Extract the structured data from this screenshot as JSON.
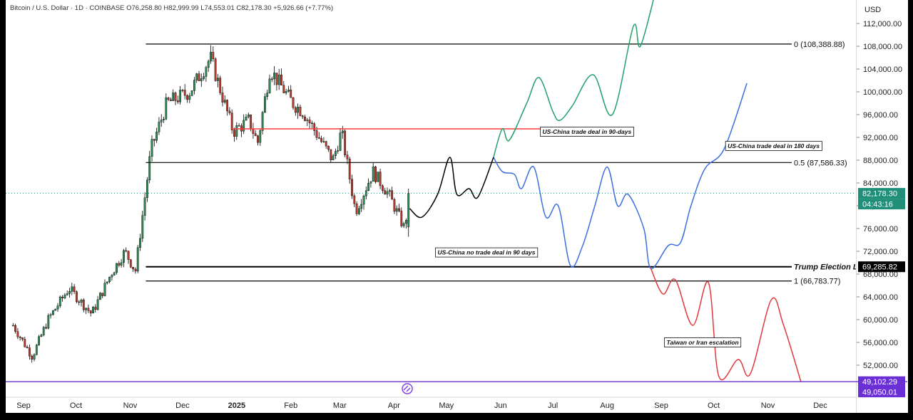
{
  "header": {
    "symbol": "Bitcoin / U.S. Dollar · 1D · COINBASE",
    "open": "O76,258.80",
    "high": "H82,999.99",
    "low": "L74,553.01",
    "close": "C82,178.30",
    "change": "+5,926.66 (+7.77%)"
  },
  "colors": {
    "up": "#2e8b57",
    "down": "#c0392b",
    "wick": "#000000",
    "level": "#000000",
    "red_level": "#ff3b3b",
    "green_path": "#22a06b",
    "blue_path": "#3d6fe0",
    "red_path": "#e0393d",
    "black_path": "#000000",
    "price_tag": "#1f8f7a",
    "purple": "#6a2fd6"
  },
  "chart_data": {
    "type": "candlestick",
    "currency_label": "USD",
    "x_axis": {
      "ticks": [
        "Sep",
        "Oct",
        "Nov",
        "Dec",
        "2025",
        "Feb",
        "Mar",
        "Apr",
        "May",
        "Jun",
        "Jul",
        "Aug",
        "Sep",
        "Oct",
        "Nov",
        "Dec"
      ],
      "tick_dates": [
        "2024-09-01",
        "2024-10-01",
        "2024-11-01",
        "2024-12-01",
        "2025-01-01",
        "2025-02-01",
        "2025-03-01",
        "2025-04-01",
        "2025-05-01",
        "2025-06-01",
        "2025-07-01",
        "2025-08-01",
        "2025-09-01",
        "2025-10-01",
        "2025-11-01",
        "2025-12-01"
      ]
    },
    "y_axis": {
      "range": [
        45000,
        116000
      ],
      "ticks": [
        112000,
        108000,
        104000,
        100000,
        96000,
        92000,
        88000,
        84000,
        80000,
        76000,
        72000,
        68000,
        64000,
        60000,
        56000,
        52000
      ],
      "tick_labels": [
        "112,000.00",
        "108,000.00",
        "104,000.00",
        "100,000.00",
        "96,000.00",
        "92,000.00",
        "88,000.00",
        "84,000.00",
        "80,000.00",
        "76,000.00",
        "72,000.00",
        "68,000.00",
        "64,000.00",
        "60,000.00",
        "56,000.00",
        "52,000.00"
      ]
    },
    "price_path": {
      "dates": [
        "2024-08-26",
        "2024-09-06",
        "2024-09-15",
        "2024-09-27",
        "2024-10-10",
        "2024-10-21",
        "2024-10-29",
        "2024-11-04",
        "2024-11-13",
        "2024-11-22",
        "2024-12-05",
        "2024-12-17",
        "2024-12-30",
        "2025-01-08",
        "2025-01-13",
        "2025-01-20",
        "2025-02-02",
        "2025-02-08",
        "2025-02-25",
        "2025-03-02",
        "2025-03-10",
        "2025-03-20",
        "2025-03-29",
        "2025-04-07",
        "2025-04-10"
      ],
      "close": [
        59000,
        53500,
        60000,
        65500,
        61000,
        68000,
        72000,
        68500,
        90000,
        98000,
        100000,
        106000,
        93000,
        95000,
        91000,
        104000,
        98000,
        96500,
        88000,
        93000,
        79000,
        86000,
        82000,
        76000,
        82178
      ]
    },
    "levels": [
      {
        "label": "0 (108,388.88)",
        "price": 108388.88,
        "start_date": "2024-11-10"
      },
      {
        "label": "0.5 (87,586.33)",
        "price": 87586.33,
        "start_date": "2024-11-10"
      },
      {
        "label": "Trump Election Lows",
        "price": 69285.82,
        "start_date": "2024-11-10"
      },
      {
        "label": "1 (66,783.77)",
        "price": 66783.77,
        "start_date": "2024-11-10"
      },
      {
        "label": "",
        "price": 93500,
        "start_date": "2024-12-29",
        "end_date": "2025-06-25",
        "color": "red"
      }
    ],
    "scenarios": [
      {
        "name": "US-China trade deal in 90-days",
        "color": "green",
        "dates": [
          "2025-05-28",
          "2025-06-02",
          "2025-06-06",
          "2025-06-16",
          "2025-06-23",
          "2025-07-01",
          "2025-07-05",
          "2025-07-12",
          "2025-07-24",
          "2025-08-04",
          "2025-08-16",
          "2025-08-20",
          "2025-08-29"
        ],
        "prices": [
          88500,
          93500,
          91500,
          98000,
          102500,
          96500,
          95000,
          97500,
          103000,
          96000,
          111500,
          108000,
          118000
        ]
      },
      {
        "name": "US-China trade deal in 180 days",
        "color": "blue",
        "dates": [
          "2025-05-28",
          "2025-06-02",
          "2025-06-09",
          "2025-06-13",
          "2025-06-20",
          "2025-06-27",
          "2025-07-04",
          "2025-07-11",
          "2025-07-18",
          "2025-07-25",
          "2025-08-01",
          "2025-08-07",
          "2025-08-13",
          "2025-08-22",
          "2025-08-26",
          "2025-09-05",
          "2025-09-12",
          "2025-09-18",
          "2025-09-26",
          "2025-10-07",
          "2025-10-20"
        ],
        "prices": [
          88500,
          86000,
          85500,
          83000,
          86800,
          78000,
          80000,
          69500,
          73000,
          80000,
          86800,
          80000,
          82000,
          76000,
          69000,
          73000,
          73500,
          80000,
          86500,
          90000,
          101500
        ]
      },
      {
        "name": "Taiwan or Iran escalation",
        "color": "red",
        "dates": [
          "2025-08-26",
          "2025-09-02",
          "2025-09-09",
          "2025-09-19",
          "2025-09-28",
          "2025-10-04",
          "2025-10-15",
          "2025-10-22",
          "2025-11-03",
          "2025-11-10",
          "2025-11-20"
        ],
        "prices": [
          69000,
          64500,
          67000,
          59000,
          66500,
          50000,
          53000,
          50500,
          63500,
          59000,
          49000
        ]
      },
      {
        "name": "US-China no trade deal in 90 days",
        "color": "black",
        "dates": [
          "2025-04-10",
          "2025-04-17",
          "2025-04-26",
          "2025-05-03",
          "2025-05-07",
          "2025-05-14",
          "2025-05-19",
          "2025-05-28"
        ],
        "prices": [
          79500,
          78000,
          82000,
          88500,
          82000,
          83000,
          81500,
          88500
        ]
      }
    ],
    "annotations": [
      {
        "text": "US-China trade deal in 90-days",
        "date": "2025-06-25",
        "price": 93000
      },
      {
        "text": "US-China trade deal in 180 days",
        "date": "2025-10-09",
        "price": 90500
      },
      {
        "text": "US-China no trade deal in 90 days",
        "date": "2025-04-26",
        "price": 71800
      },
      {
        "text": "Taiwan or Iran escalation",
        "date": "2025-09-04",
        "price": 56000
      }
    ],
    "price_labels": [
      {
        "text": "82,178.30",
        "price": 82178.3,
        "color": "teal"
      },
      {
        "text": "04:43:16",
        "price": 80300,
        "color": "teal"
      },
      {
        "text": "69,285.82",
        "price": 69285.82,
        "color": "black"
      },
      {
        "text": "49,102.29",
        "price": 49102.29,
        "color": "purple"
      },
      {
        "text": "49,050.01",
        "price": 47300,
        "color": "purple"
      }
    ],
    "horizontal_line": {
      "price": 49102.29,
      "color": "purple"
    },
    "current_price": 82178.3
  }
}
